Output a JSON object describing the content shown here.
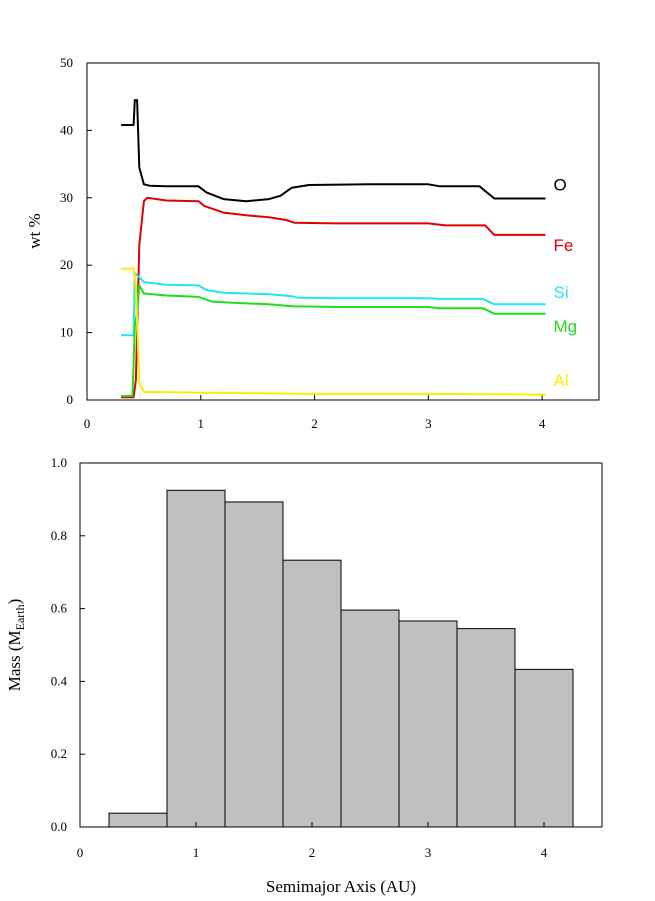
{
  "chart_data": [
    {
      "type": "line",
      "ylabel": "wt %",
      "xlim": [
        0,
        4.5
      ],
      "ylim": [
        0,
        50
      ],
      "xticks": [
        "0",
        "1",
        "2",
        "3",
        "4"
      ],
      "yticks": [
        "0",
        "10",
        "20",
        "30",
        "40",
        "50"
      ],
      "series": [
        {
          "name": "O",
          "color": "#000000",
          "points": [
            [
              0.3,
              40.8
            ],
            [
              0.41,
              40.8
            ],
            [
              0.42,
              44.5
            ],
            [
              0.44,
              44.5
            ],
            [
              0.46,
              34.5
            ],
            [
              0.5,
              32
            ],
            [
              0.55,
              31.8
            ],
            [
              0.7,
              31.7
            ],
            [
              0.98,
              31.7
            ],
            [
              1.05,
              30.8
            ],
            [
              1.2,
              29.8
            ],
            [
              1.4,
              29.5
            ],
            [
              1.6,
              29.8
            ],
            [
              1.7,
              30.3
            ],
            [
              1.8,
              31.5
            ],
            [
              1.95,
              31.9
            ],
            [
              2.5,
              32
            ],
            [
              3.0,
              32
            ],
            [
              3.1,
              31.7
            ],
            [
              3.45,
              31.7
            ],
            [
              3.58,
              29.9
            ],
            [
              4.03,
              29.9
            ]
          ]
        },
        {
          "name": "Fe",
          "color": "#e00000",
          "points": [
            [
              0.3,
              0.4
            ],
            [
              0.41,
              0.4
            ],
            [
              0.43,
              3
            ],
            [
              0.46,
              23
            ],
            [
              0.5,
              29.5
            ],
            [
              0.53,
              30
            ],
            [
              0.7,
              29.6
            ],
            [
              0.98,
              29.5
            ],
            [
              1.03,
              28.8
            ],
            [
              1.2,
              27.8
            ],
            [
              1.4,
              27.4
            ],
            [
              1.6,
              27.1
            ],
            [
              1.75,
              26.7
            ],
            [
              1.82,
              26.3
            ],
            [
              2.2,
              26.2
            ],
            [
              3.0,
              26.2
            ],
            [
              3.15,
              25.9
            ],
            [
              3.5,
              25.9
            ],
            [
              3.58,
              24.5
            ],
            [
              4.03,
              24.5
            ]
          ]
        },
        {
          "name": "Si",
          "color": "#22e5ee",
          "points": [
            [
              0.3,
              9.6
            ],
            [
              0.41,
              9.6
            ],
            [
              0.42,
              18.8
            ],
            [
              0.46,
              18.2
            ],
            [
              0.5,
              17.5
            ],
            [
              0.7,
              17.1
            ],
            [
              0.98,
              17
            ],
            [
              1.05,
              16.3
            ],
            [
              1.2,
              15.9
            ],
            [
              1.6,
              15.7
            ],
            [
              1.8,
              15.4
            ],
            [
              1.85,
              15.2
            ],
            [
              2.2,
              15.1
            ],
            [
              3.0,
              15.1
            ],
            [
              3.1,
              15
            ],
            [
              3.48,
              15
            ],
            [
              3.58,
              14.2
            ],
            [
              4.03,
              14.2
            ]
          ]
        },
        {
          "name": "Mg",
          "color": "#1fdc1f",
          "points": [
            [
              0.3,
              0.6
            ],
            [
              0.4,
              0.6
            ],
            [
              0.42,
              11
            ],
            [
              0.44,
              13
            ],
            [
              0.46,
              17
            ],
            [
              0.5,
              15.8
            ],
            [
              0.7,
              15.5
            ],
            [
              0.98,
              15.3
            ],
            [
              1.1,
              14.6
            ],
            [
              1.3,
              14.4
            ],
            [
              1.6,
              14.2
            ],
            [
              1.8,
              13.9
            ],
            [
              2.2,
              13.8
            ],
            [
              3.0,
              13.8
            ],
            [
              3.1,
              13.6
            ],
            [
              3.48,
              13.6
            ],
            [
              3.58,
              12.8
            ],
            [
              4.03,
              12.8
            ]
          ]
        },
        {
          "name": "Al",
          "color": "#f5f000",
          "points": [
            [
              0.3,
              19.5
            ],
            [
              0.41,
              19.5
            ],
            [
              0.43,
              17
            ],
            [
              0.46,
              2.5
            ],
            [
              0.5,
              1.2
            ],
            [
              1.0,
              1.1
            ],
            [
              1.5,
              1.0
            ],
            [
              2.0,
              0.9
            ],
            [
              3.0,
              0.9
            ],
            [
              3.5,
              0.85
            ],
            [
              4.03,
              0.8
            ]
          ]
        }
      ],
      "labels": [
        {
          "text": "O",
          "x": 4.1,
          "y": 32
        },
        {
          "text": "Fe",
          "x": 4.1,
          "y": 23
        },
        {
          "text": "Si",
          "x": 4.1,
          "y": 16
        },
        {
          "text": "Mg",
          "x": 4.1,
          "y": 11
        },
        {
          "text": "Al",
          "x": 4.1,
          "y": 3
        }
      ]
    },
    {
      "type": "bar",
      "xlabel": "Semimajor Axis (AU)",
      "ylabel_main": "Mass (M",
      "ylabel_sub": "Earth",
      "ylabel_end": ")",
      "xlim": [
        0,
        4.5
      ],
      "ylim": [
        0,
        1.0
      ],
      "xticks": [
        "0",
        "1",
        "2",
        "3",
        "4"
      ],
      "yticks": [
        "0.0",
        "0.2",
        "0.4",
        "0.6",
        "0.8",
        "1.0"
      ],
      "bar_width": 0.5,
      "bar_color": "#c0c0c0",
      "bars": [
        {
          "center": 0.5,
          "value": 0.038
        },
        {
          "center": 1.0,
          "value": 0.925
        },
        {
          "center": 1.5,
          "value": 0.893
        },
        {
          "center": 2.0,
          "value": 0.733
        },
        {
          "center": 2.5,
          "value": 0.596
        },
        {
          "center": 3.0,
          "value": 0.566
        },
        {
          "center": 3.5,
          "value": 0.545
        },
        {
          "center": 4.0,
          "value": 0.433
        }
      ]
    }
  ]
}
